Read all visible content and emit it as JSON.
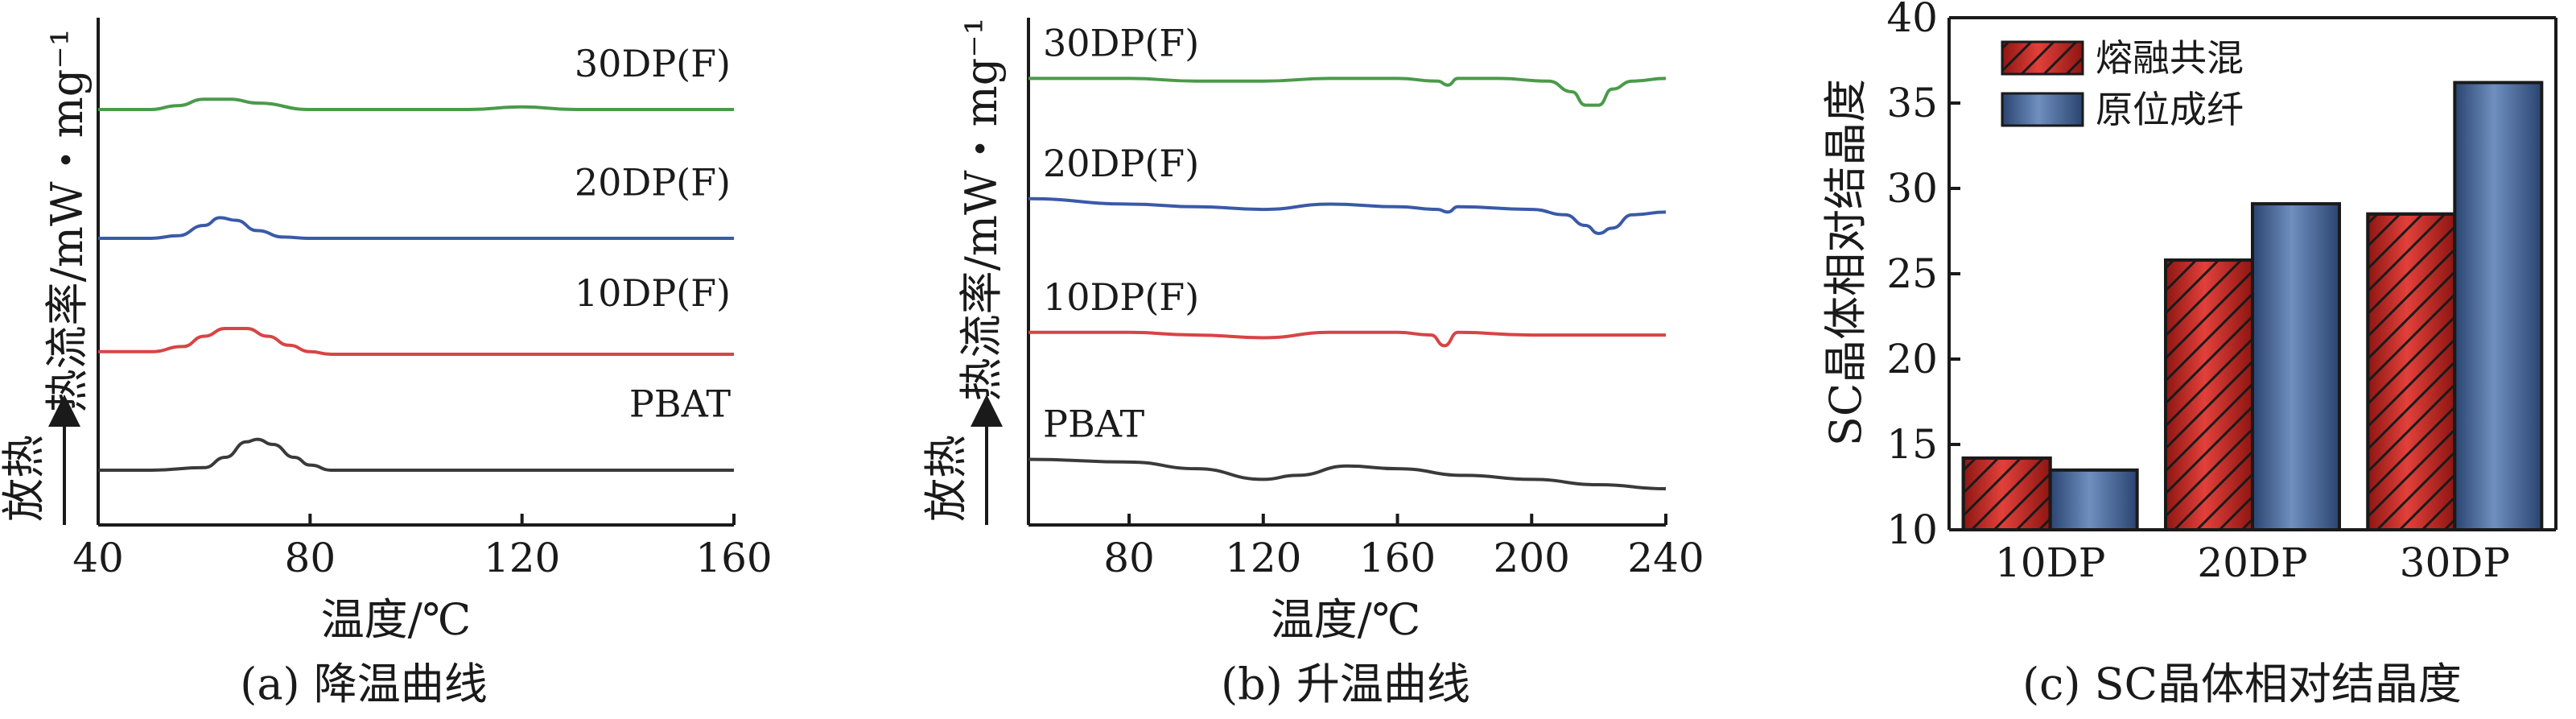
{
  "chart_data": [
    {
      "type": "line",
      "caption": "(a) 降温曲线",
      "xlabel": "温度/℃",
      "ylabel": "热流率/mW・mg⁻¹",
      "exo_label": "放热",
      "xlim": [
        40,
        160
      ],
      "xticks": [
        40,
        80,
        120,
        160
      ],
      "series": [
        {
          "name": "30DP(F)",
          "color": "#4a9a4a",
          "x": [
            40,
            50,
            55,
            60,
            65,
            70,
            80,
            90,
            110,
            120,
            130,
            140,
            160
          ],
          "y": [
            3.6,
            3.6,
            3.63,
            3.68,
            3.68,
            3.65,
            3.6,
            3.6,
            3.6,
            3.62,
            3.6,
            3.6,
            3.6
          ]
        },
        {
          "name": "20DP(F)",
          "color": "#3a5aa8",
          "x": [
            40,
            50,
            55,
            60,
            63,
            66,
            70,
            75,
            80,
            100,
            130,
            160
          ],
          "y": [
            2.6,
            2.6,
            2.62,
            2.7,
            2.76,
            2.74,
            2.66,
            2.61,
            2.6,
            2.6,
            2.6,
            2.6
          ]
        },
        {
          "name": "10DP(F)",
          "color": "#d84444",
          "x": [
            40,
            50,
            56,
            60,
            64,
            68,
            72,
            76,
            80,
            84,
            100,
            130,
            160
          ],
          "y": [
            1.72,
            1.72,
            1.76,
            1.84,
            1.9,
            1.9,
            1.84,
            1.77,
            1.72,
            1.7,
            1.7,
            1.7,
            1.7
          ]
        },
        {
          "name": "PBAT",
          "color": "#3a3a3a",
          "x": [
            40,
            50,
            60,
            64,
            68,
            70,
            73,
            77,
            80,
            84,
            100,
            130,
            160
          ],
          "y": [
            0.8,
            0.8,
            0.82,
            0.9,
            1.02,
            1.04,
            1.0,
            0.9,
            0.84,
            0.8,
            0.8,
            0.8,
            0.8
          ]
        }
      ]
    },
    {
      "type": "line",
      "caption": "(b) 升温曲线",
      "xlabel": "温度/℃",
      "ylabel": "热流率/mW・mg⁻¹",
      "exo_label": "放热",
      "xlim": [
        50,
        240
      ],
      "xticks": [
        80,
        120,
        160,
        200,
        240
      ],
      "series": [
        {
          "name": "30DP(F)",
          "color": "#4a9a4a",
          "x": [
            50,
            80,
            100,
            120,
            140,
            160,
            172,
            175,
            178,
            190,
            205,
            212,
            216,
            220,
            224,
            230,
            240
          ],
          "y": [
            3.6,
            3.6,
            3.58,
            3.58,
            3.6,
            3.6,
            3.58,
            3.55,
            3.6,
            3.6,
            3.58,
            3.5,
            3.4,
            3.4,
            3.52,
            3.58,
            3.6
          ]
        },
        {
          "name": "20DP(F)",
          "color": "#3a5aa8",
          "x": [
            50,
            80,
            100,
            120,
            140,
            160,
            172,
            175,
            178,
            200,
            210,
            216,
            220,
            224,
            230,
            240
          ],
          "y": [
            2.7,
            2.66,
            2.64,
            2.62,
            2.66,
            2.64,
            2.62,
            2.6,
            2.64,
            2.62,
            2.58,
            2.5,
            2.44,
            2.48,
            2.58,
            2.6
          ]
        },
        {
          "name": "10DP(F)",
          "color": "#d84444",
          "x": [
            50,
            80,
            100,
            120,
            140,
            160,
            170,
            174,
            178,
            200,
            240
          ],
          "y": [
            1.7,
            1.7,
            1.68,
            1.66,
            1.7,
            1.7,
            1.68,
            1.6,
            1.7,
            1.68,
            1.68
          ]
        },
        {
          "name": "PBAT",
          "color": "#3a3a3a",
          "x": [
            50,
            80,
            100,
            120,
            130,
            145,
            160,
            180,
            200,
            220,
            240
          ],
          "y": [
            0.75,
            0.73,
            0.68,
            0.6,
            0.63,
            0.7,
            0.68,
            0.63,
            0.6,
            0.56,
            0.53
          ]
        }
      ],
      "label_positions_note": ""
    },
    {
      "type": "bar",
      "caption": "(c) SC晶体相对结晶度",
      "ylabel": "SC晶体相对结晶度",
      "categories": [
        "10DP",
        "20DP",
        "30DP"
      ],
      "ylim": [
        10,
        40
      ],
      "yticks": [
        10,
        15,
        20,
        25,
        30,
        35,
        40
      ],
      "legend_position": "top-left",
      "series": [
        {
          "name": "熔融共混",
          "color": "#cc2b26",
          "pattern": "hatch",
          "values": [
            14.2,
            25.8,
            28.5
          ]
        },
        {
          "name": "原位成纤",
          "color": "#3e5e8c",
          "pattern": "solid",
          "values": [
            13.5,
            29.1,
            36.2
          ]
        }
      ]
    }
  ]
}
